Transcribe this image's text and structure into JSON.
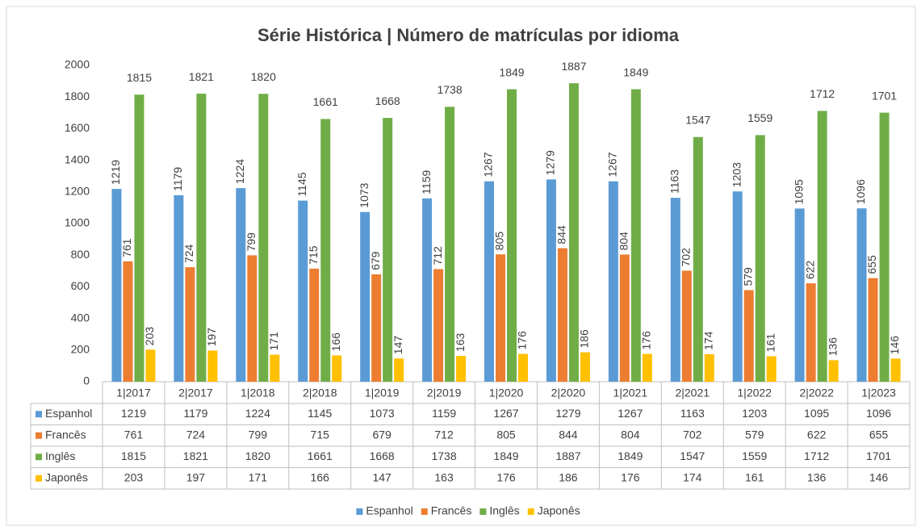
{
  "chart_data": {
    "type": "bar",
    "title": "Série Histórica | Número de matrículas por idioma",
    "categories": [
      "1|2017",
      "2|2017",
      "1|2018",
      "2|2018",
      "1|2019",
      "2|2019",
      "1|2020",
      "2|2020",
      "1|2021",
      "2|2021",
      "1|2022",
      "2|2022",
      "1|2023"
    ],
    "series": [
      {
        "name": "Espanhol",
        "color": "#5b9bd5",
        "values": [
          1219,
          1179,
          1224,
          1145,
          1073,
          1159,
          1267,
          1279,
          1267,
          1163,
          1203,
          1095,
          1096
        ]
      },
      {
        "name": "Francês",
        "color": "#ed7d31",
        "values": [
          761,
          724,
          799,
          715,
          679,
          712,
          805,
          844,
          804,
          702,
          579,
          622,
          655
        ]
      },
      {
        "name": "Inglês",
        "color": "#70ad47",
        "values": [
          1815,
          1821,
          1820,
          1661,
          1668,
          1738,
          1849,
          1887,
          1849,
          1547,
          1559,
          1712,
          1701
        ]
      },
      {
        "name": "Japonês",
        "color": "#ffc000",
        "values": [
          203,
          197,
          171,
          166,
          147,
          163,
          176,
          186,
          176,
          174,
          161,
          136,
          146
        ]
      }
    ],
    "ylim": [
      0,
      2000
    ],
    "yticks": [
      0,
      200,
      400,
      600,
      800,
      1000,
      1200,
      1400,
      1600,
      1800,
      2000
    ],
    "grid": false,
    "legend": "bottom"
  }
}
